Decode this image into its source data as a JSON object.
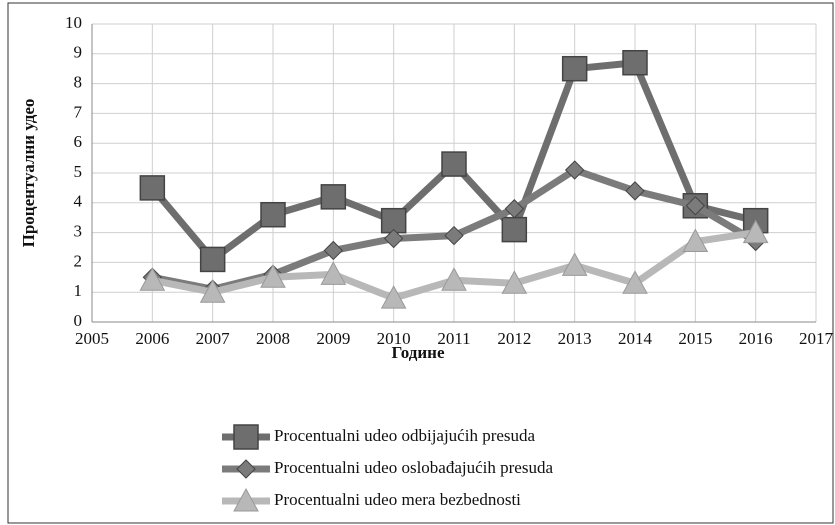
{
  "chart_data": {
    "type": "line",
    "x_label": "Године",
    "y_label": "Процентуални удео",
    "x": [
      2006,
      2007,
      2008,
      2009,
      2010,
      2011,
      2012,
      2013,
      2014,
      2015,
      2016
    ],
    "series": [
      {
        "name": "Procentualni udeo odbijajućih presuda",
        "color": "#6e6e6e",
        "marker": "square",
        "values": [
          4.5,
          2.1,
          3.6,
          4.2,
          3.4,
          5.3,
          3.1,
          8.5,
          8.7,
          3.9,
          3.4
        ]
      },
      {
        "name": "Procentualni udeo oslobađajućih presuda",
        "color": "#7b7b7b",
        "marker": "diamond",
        "values": [
          1.5,
          1.1,
          1.6,
          2.4,
          2.8,
          2.9,
          3.8,
          5.1,
          4.4,
          3.9,
          2.7
        ]
      },
      {
        "name": "Procentualni udeo mera bezbednosti",
        "color": "#b8b8b8",
        "marker": "triangle",
        "values": [
          1.4,
          1.0,
          1.5,
          1.6,
          0.8,
          1.4,
          1.3,
          1.9,
          1.3,
          2.7,
          3.0
        ]
      }
    ],
    "xlim": [
      2005,
      2017
    ],
    "xticks": [
      2005,
      2006,
      2007,
      2008,
      2009,
      2010,
      2011,
      2012,
      2013,
      2014,
      2015,
      2016,
      2017
    ],
    "ylim": [
      0,
      10
    ],
    "yticks": [
      0,
      1,
      2,
      3,
      4,
      5,
      6,
      7,
      8,
      9,
      10
    ],
    "grid": true,
    "legend": "bottom"
  }
}
